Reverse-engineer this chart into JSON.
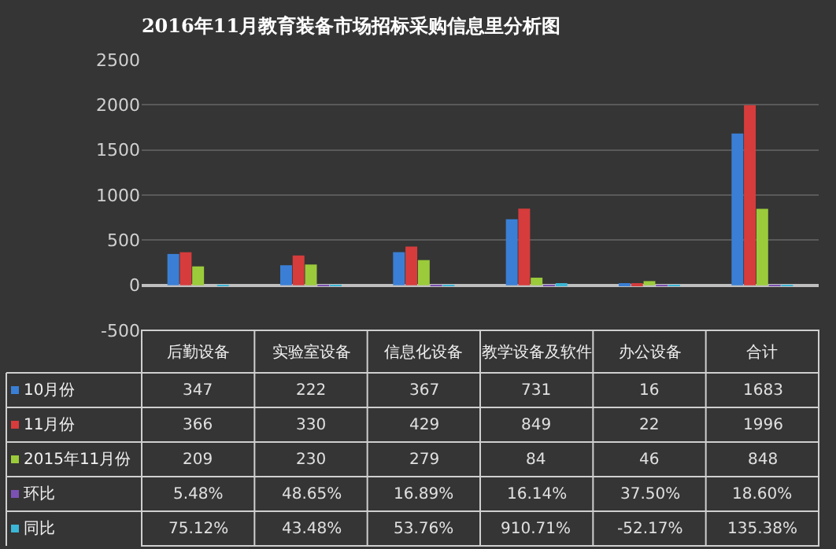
{
  "chart_data": {
    "type": "bar",
    "title": "2016年11月教育装备市场招标采购信息里分析图",
    "categories": [
      "后勤设备",
      "实验室设备",
      "信息化设备",
      "教学设备及软件",
      "办公设备",
      "合计"
    ],
    "series": [
      {
        "name": "10月份",
        "color": "#3a7fd5",
        "values": [
          347,
          222,
          367,
          731,
          16,
          1683
        ],
        "value_labels": [
          "347",
          "222",
          "367",
          "731",
          "16",
          "1683"
        ]
      },
      {
        "name": "11月份",
        "color": "#d63c3c",
        "values": [
          366,
          330,
          429,
          849,
          22,
          1996
        ],
        "value_labels": [
          "366",
          "330",
          "429",
          "849",
          "22",
          "1996"
        ]
      },
      {
        "name": "2015年11月份",
        "color": "#9bcb3b",
        "values": [
          209,
          230,
          279,
          84,
          46,
          848
        ],
        "value_labels": [
          "209",
          "230",
          "279",
          "84",
          "46",
          "848"
        ]
      },
      {
        "name": "环比",
        "color": "#7b52b3",
        "values": [
          0.0548,
          0.4865,
          0.1689,
          0.1614,
          0.375,
          0.186
        ],
        "value_labels": [
          "5.48%",
          "48.65%",
          "16.89%",
          "16.14%",
          "37.50%",
          "18.60%"
        ]
      },
      {
        "name": "同比",
        "color": "#3cb6d6",
        "values": [
          0.7512,
          0.4348,
          0.5376,
          9.1071,
          -0.5217,
          1.3538
        ],
        "value_labels": [
          "75.12%",
          "43.48%",
          "53.76%",
          "910.71%",
          "-52.17%",
          "135.38%"
        ]
      }
    ],
    "ylim": [
      -500,
      2500
    ],
    "yticks": [
      -500,
      0,
      500,
      1000,
      1500,
      2000,
      2500
    ],
    "grid": "y",
    "legend": "bottom left"
  }
}
